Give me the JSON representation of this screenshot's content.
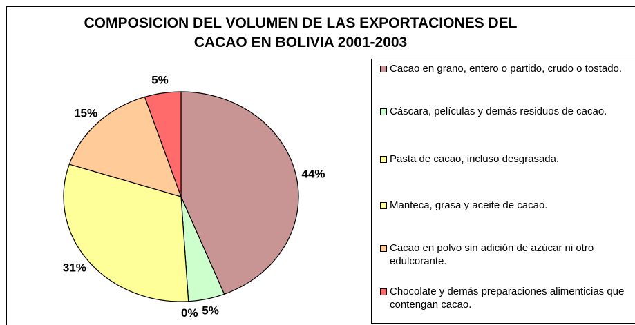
{
  "chart_data": {
    "type": "pie",
    "title": "COMPOSICION DEL VOLUMEN DE LAS EXPORTACIONES DEL CACAO EN BOLIVIA 2001-2003",
    "categories": [
      "Cacao en grano, entero o partido, crudo o tostado.",
      "Cáscara, películas y demás residuos de cacao.",
      "Pasta de cacao, incluso desgrasada.",
      "Manteca, grasa y aceite de cacao.",
      "Cacao en polvo sin adición de azúcar ni otro edulcorante.",
      "Chocolate y demás preparaciones alimenticias que contengan cacao."
    ],
    "values": [
      44,
      5,
      0,
      31,
      15,
      5
    ],
    "value_labels": [
      "44%",
      "5%",
      "0%",
      "31%",
      "15%",
      "5%"
    ],
    "colors": [
      "#c99494",
      "#ccffcc",
      "#ffff99",
      "#ffff99",
      "#ffcc99",
      "#ff6b6b"
    ],
    "legend": "right"
  }
}
